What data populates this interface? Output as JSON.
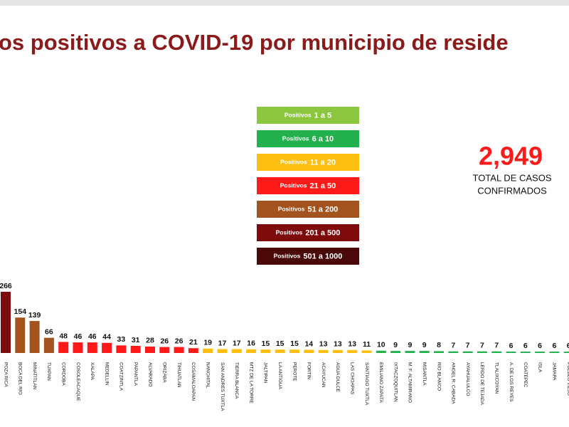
{
  "chart_data": {
    "type": "bar",
    "title": "os positivos a COVID-19  por municipio de reside",
    "total": {
      "value": "2,949",
      "line1": "TOTAL DE CASOS",
      "line2": "CONFIRMADOS"
    },
    "legend": [
      {
        "text": "Positivos",
        "range": "1 a 5",
        "color": "#8cc63f"
      },
      {
        "text": "Positivos",
        "range": "6 a 10",
        "color": "#22b14c"
      },
      {
        "text": "Positivos",
        "range": "11 a 20",
        "color": "#fdc010"
      },
      {
        "text": "Positivos",
        "range": "21 a 50",
        "color": "#ff1a1a"
      },
      {
        "text": "Positivos",
        "range": "51 a 200",
        "color": "#a3541e"
      },
      {
        "text": "Positivos",
        "range": "201 a 500",
        "color": "#7e0b0b"
      },
      {
        "text": "Positivos",
        "range": "501 a 1000",
        "color": "#4a0808"
      }
    ],
    "categories": [
      "POZA RICA",
      "BOCA DEL RIO",
      "MINATITLAN",
      "TUXPAN",
      "CORDOBA",
      "COSOLEACAQUE",
      "XALAPA",
      "MEDELLIN",
      "COATZINTLA",
      "PAPANTLA",
      "ALVARADO",
      "ORIZABA",
      "TIHUATLAN",
      "COSAMALOAPAN",
      "NANCHITAL",
      "SAN ANDRES TUXTLA",
      "TIERRA BLANCA",
      "MTZ DE LA TORRE",
      "JALTIPAN",
      "LA ANTIGUA",
      "PEROTE",
      "FORTIN",
      "ACAYUCAN",
      "AGUA DULCE",
      "LAS CHOAPAS",
      "SANTIAGO TUXTLA",
      "EMILIANO ZAPATA",
      "IXTACZOQUITLAN",
      "M. F. ALTAMIRANO",
      "MISANTLA",
      "RIO BLANCO",
      "ANGEL R. CABADA",
      "AYAHUALULCO",
      "LERDO DE TEJADA",
      "TLALIXCOYAN",
      "A. DE LOS REYES",
      "COATEPEC",
      "ISLA",
      "JAMAPA",
      "PUEBLO VIEJO"
    ],
    "values": [
      266,
      154,
      139,
      66,
      48,
      46,
      46,
      44,
      33,
      31,
      28,
      26,
      26,
      21,
      19,
      17,
      17,
      16,
      15,
      15,
      15,
      14,
      13,
      13,
      13,
      11,
      10,
      9,
      9,
      9,
      8,
      7,
      7,
      7,
      7,
      6,
      6,
      6,
      6,
      6
    ],
    "colors": [
      "#7e0b0b",
      "#a3541e",
      "#a3541e",
      "#a3541e",
      "#ff1a1a",
      "#ff1a1a",
      "#ff1a1a",
      "#ff1a1a",
      "#ff1a1a",
      "#ff1a1a",
      "#ff1a1a",
      "#ff1a1a",
      "#ff1a1a",
      "#ff1a1a",
      "#fdc010",
      "#fdc010",
      "#fdc010",
      "#fdc010",
      "#fdc010",
      "#fdc010",
      "#fdc010",
      "#fdc010",
      "#fdc010",
      "#fdc010",
      "#fdc010",
      "#fdc010",
      "#22b14c",
      "#22b14c",
      "#22b14c",
      "#22b14c",
      "#22b14c",
      "#22b14c",
      "#22b14c",
      "#22b14c",
      "#22b14c",
      "#22b14c",
      "#22b14c",
      "#22b14c",
      "#22b14c",
      "#22b14c"
    ],
    "ylim": [
      0,
      300
    ]
  }
}
